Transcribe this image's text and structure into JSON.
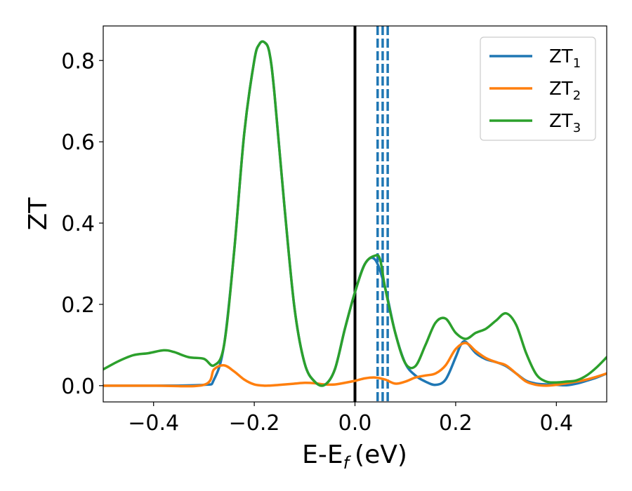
{
  "chart_data": {
    "type": "line",
    "xlabel": "E-E",
    "xlabel_sub": "f",
    "xlabel_unit": "(eV)",
    "ylabel": "ZT",
    "xlim": [
      -0.5,
      0.5
    ],
    "ylim": [
      -0.04,
      0.885
    ],
    "xticks": [
      -0.4,
      -0.2,
      0.0,
      0.2,
      0.4
    ],
    "xtick_labels": [
      "−0.4",
      "−0.2",
      "0.0",
      "0.2",
      "0.4"
    ],
    "yticks": [
      0.0,
      0.2,
      0.4,
      0.6,
      0.8
    ],
    "ytick_labels": [
      "0.0",
      "0.2",
      "0.4",
      "0.6",
      "0.8"
    ],
    "grid": false,
    "legend_position": "top-right",
    "vertical_lines": [
      {
        "x": 0.0,
        "style": "solid",
        "color": "#000000"
      },
      {
        "x": 0.045,
        "style": "dashed",
        "color": "#1f77b4"
      },
      {
        "x": 0.055,
        "style": "dashed",
        "color": "#1f77b4"
      },
      {
        "x": 0.065,
        "style": "dashed",
        "color": "#1f77b4"
      }
    ],
    "series": [
      {
        "name": "ZT",
        "subscript": "1",
        "color": "#1f77b4",
        "x": [
          -0.5,
          -0.4,
          -0.3,
          -0.28,
          -0.26,
          -0.24,
          -0.22,
          -0.2,
          -0.19,
          -0.18,
          -0.17,
          -0.16,
          -0.14,
          -0.12,
          -0.1,
          -0.08,
          -0.06,
          -0.04,
          -0.02,
          0.0,
          0.02,
          0.04,
          0.06,
          0.08,
          0.1,
          0.12,
          0.14,
          0.16,
          0.18,
          0.2,
          0.21,
          0.22,
          0.24,
          0.26,
          0.28,
          0.3,
          0.32,
          0.34,
          0.36,
          0.38,
          0.4,
          0.42,
          0.44,
          0.46,
          0.48,
          0.5
        ],
        "y": [
          0.0,
          0.0,
          0.002,
          0.015,
          0.1,
          0.33,
          0.62,
          0.8,
          0.84,
          0.845,
          0.82,
          0.72,
          0.44,
          0.19,
          0.055,
          0.01,
          0.002,
          0.04,
          0.14,
          0.23,
          0.3,
          0.31,
          0.24,
          0.13,
          0.055,
          0.025,
          0.01,
          0.002,
          0.015,
          0.07,
          0.1,
          0.108,
          0.08,
          0.065,
          0.058,
          0.048,
          0.03,
          0.012,
          0.005,
          0.003,
          0.002,
          0.001,
          0.005,
          0.012,
          0.02,
          0.03
        ]
      },
      {
        "name": "ZT",
        "subscript": "2",
        "color": "#ff7f0e",
        "x": [
          -0.5,
          -0.4,
          -0.3,
          -0.28,
          -0.26,
          -0.24,
          -0.22,
          -0.2,
          -0.18,
          -0.16,
          -0.14,
          -0.12,
          -0.1,
          -0.08,
          -0.06,
          -0.04,
          -0.02,
          0.0,
          0.02,
          0.04,
          0.06,
          0.08,
          0.1,
          0.12,
          0.14,
          0.16,
          0.18,
          0.2,
          0.22,
          0.24,
          0.26,
          0.28,
          0.3,
          0.32,
          0.34,
          0.36,
          0.38,
          0.4,
          0.42,
          0.44,
          0.46,
          0.48,
          0.5
        ],
        "y": [
          0.0,
          0.0,
          0.002,
          0.04,
          0.05,
          0.035,
          0.015,
          0.003,
          0.0,
          0.001,
          0.003,
          0.005,
          0.007,
          0.006,
          0.003,
          0.003,
          0.007,
          0.012,
          0.018,
          0.02,
          0.015,
          0.005,
          0.01,
          0.02,
          0.025,
          0.03,
          0.05,
          0.09,
          0.105,
          0.085,
          0.068,
          0.058,
          0.05,
          0.03,
          0.01,
          0.002,
          0.0,
          0.002,
          0.006,
          0.01,
          0.015,
          0.022,
          0.03
        ]
      },
      {
        "name": "ZT",
        "subscript": "3",
        "color": "#2ca02c",
        "x": [
          -0.5,
          -0.47,
          -0.44,
          -0.41,
          -0.38,
          -0.36,
          -0.33,
          -0.3,
          -0.28,
          -0.26,
          -0.24,
          -0.22,
          -0.2,
          -0.19,
          -0.18,
          -0.17,
          -0.16,
          -0.14,
          -0.12,
          -0.1,
          -0.08,
          -0.06,
          -0.04,
          -0.02,
          0.0,
          0.02,
          0.04,
          0.05,
          0.06,
          0.08,
          0.1,
          0.12,
          0.14,
          0.16,
          0.18,
          0.2,
          0.22,
          0.24,
          0.26,
          0.28,
          0.3,
          0.32,
          0.34,
          0.36,
          0.38,
          0.4,
          0.42,
          0.44,
          0.46,
          0.48,
          0.5
        ],
        "y": [
          0.04,
          0.06,
          0.075,
          0.08,
          0.087,
          0.083,
          0.07,
          0.066,
          0.05,
          0.1,
          0.33,
          0.62,
          0.8,
          0.84,
          0.845,
          0.82,
          0.72,
          0.44,
          0.19,
          0.055,
          0.01,
          0.002,
          0.04,
          0.14,
          0.23,
          0.3,
          0.32,
          0.31,
          0.24,
          0.13,
          0.055,
          0.048,
          0.1,
          0.155,
          0.165,
          0.13,
          0.115,
          0.13,
          0.14,
          0.16,
          0.178,
          0.15,
          0.08,
          0.028,
          0.01,
          0.008,
          0.01,
          0.013,
          0.025,
          0.045,
          0.07
        ]
      }
    ]
  }
}
